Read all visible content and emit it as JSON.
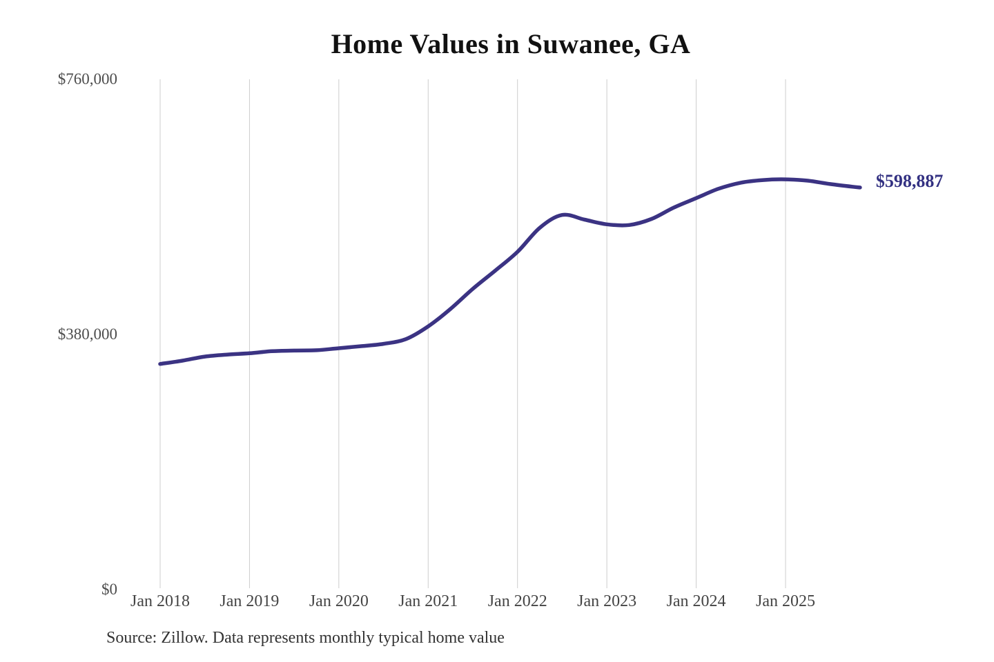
{
  "title": "Home Values in Suwanee, GA",
  "source_note": "Source: Zillow. Data represents monthly typical home value",
  "colors": {
    "line": "#3b3383",
    "latest_label": "#333182",
    "gridline": "#cccccc",
    "y_axis_label": "#4d4d4d",
    "x_axis_label": "#444444",
    "title": "#111111",
    "source": "#333333",
    "background": "#ffffff"
  },
  "chart_data": {
    "type": "line",
    "title": "Home Values in Suwanee, GA",
    "xlabel": "",
    "ylabel": "",
    "ylim": [
      0,
      760000
    ],
    "grid": "vertical-only",
    "legend": "none",
    "series_name": "Monthly typical home value",
    "latest_label": "$598,887",
    "latest_value": 598887,
    "y_ticks": [
      {
        "label": "$760,000",
        "value": 760000
      },
      {
        "label": "$380,000",
        "value": 380000
      },
      {
        "label": "$0",
        "value": 0
      }
    ],
    "x_ticks": [
      "Jan 2018",
      "Jan 2019",
      "Jan 2020",
      "Jan 2021",
      "Jan 2022",
      "Jan 2023",
      "Jan 2024",
      "Jan 2025"
    ],
    "points": [
      {
        "date": "2018-01",
        "value": 336000
      },
      {
        "date": "2018-04",
        "value": 341000
      },
      {
        "date": "2018-07",
        "value": 347000
      },
      {
        "date": "2018-10",
        "value": 350000
      },
      {
        "date": "2019-01",
        "value": 352000
      },
      {
        "date": "2019-04",
        "value": 355000
      },
      {
        "date": "2019-07",
        "value": 356000
      },
      {
        "date": "2019-10",
        "value": 356500
      },
      {
        "date": "2020-01",
        "value": 359500
      },
      {
        "date": "2020-04",
        "value": 362500
      },
      {
        "date": "2020-07",
        "value": 366000
      },
      {
        "date": "2020-10",
        "value": 373000
      },
      {
        "date": "2021-01",
        "value": 392000
      },
      {
        "date": "2021-04",
        "value": 418000
      },
      {
        "date": "2021-07",
        "value": 448000
      },
      {
        "date": "2021-10",
        "value": 475000
      },
      {
        "date": "2022-01",
        "value": 503000
      },
      {
        "date": "2022-04",
        "value": 539000
      },
      {
        "date": "2022-07",
        "value": 558000
      },
      {
        "date": "2022-10",
        "value": 551000
      },
      {
        "date": "2023-01",
        "value": 544000
      },
      {
        "date": "2023-04",
        "value": 543000
      },
      {
        "date": "2023-07",
        "value": 552000
      },
      {
        "date": "2023-10",
        "value": 569000
      },
      {
        "date": "2024-01",
        "value": 583000
      },
      {
        "date": "2024-04",
        "value": 597000
      },
      {
        "date": "2024-07",
        "value": 606000
      },
      {
        "date": "2024-10",
        "value": 610000
      },
      {
        "date": "2025-01",
        "value": 611000
      },
      {
        "date": "2025-04",
        "value": 609000
      },
      {
        "date": "2025-07",
        "value": 604000
      },
      {
        "date": "2025-10",
        "value": 600000
      },
      {
        "date": "2025-11",
        "value": 598887
      }
    ]
  }
}
